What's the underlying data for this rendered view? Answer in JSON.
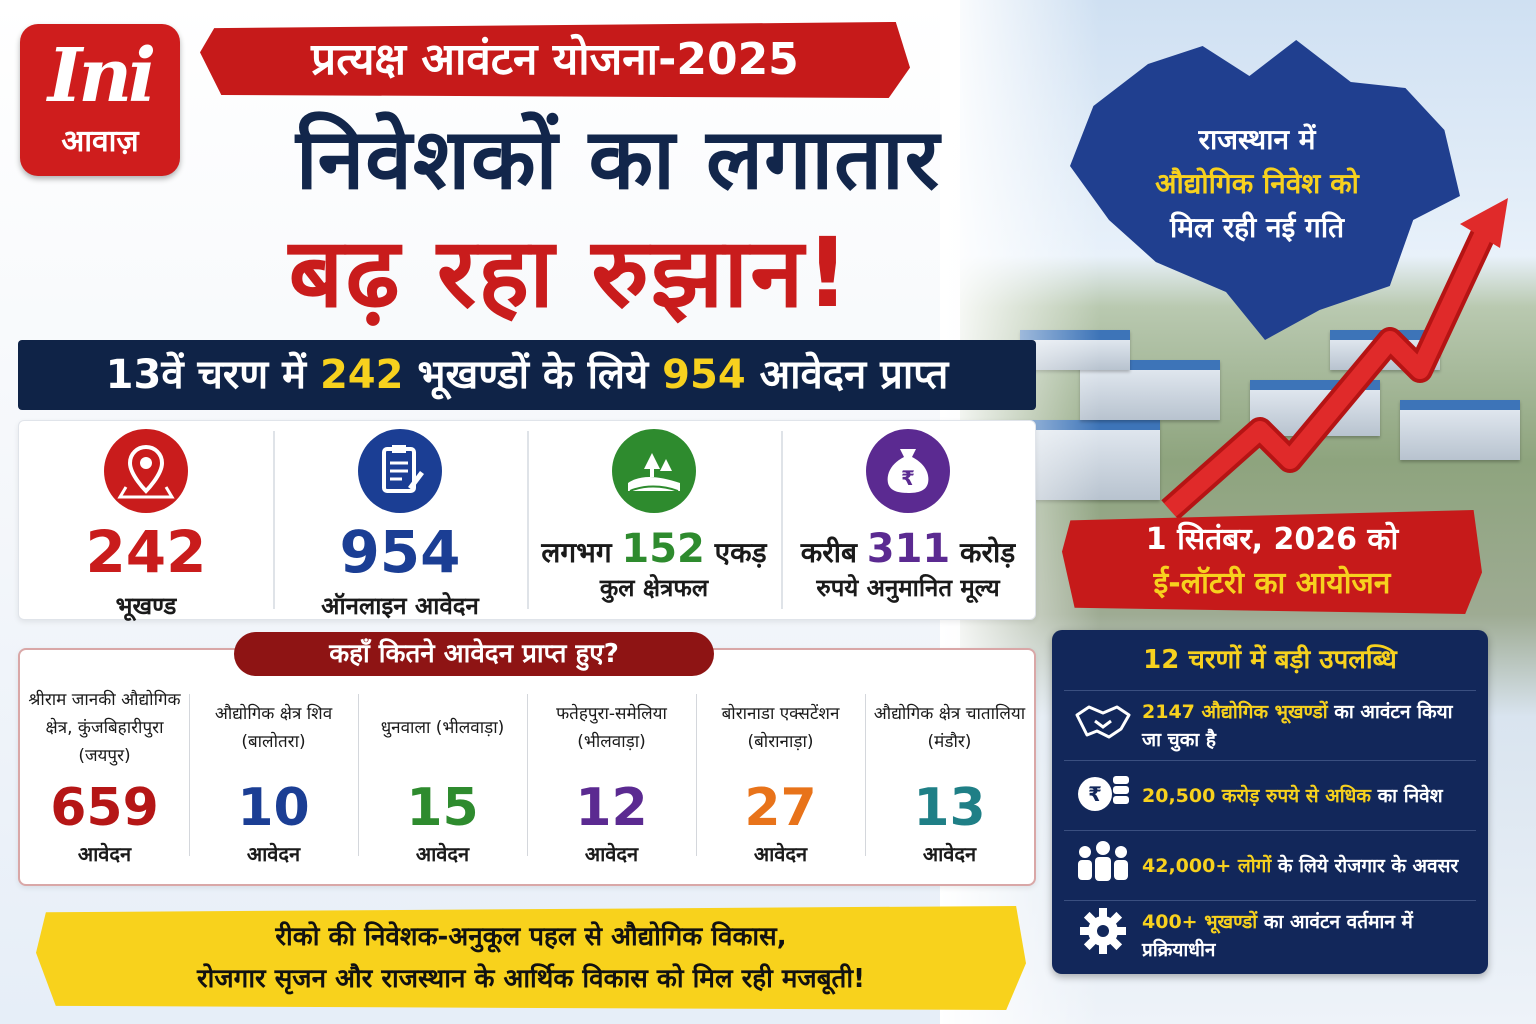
{
  "logo": {
    "mark": "Ini",
    "name": "आवाज़"
  },
  "header": {
    "banner": "प्रत्यक्ष आवंटन योजना-2025",
    "headline_line1": "निवेशकों का लगातार",
    "headline_line2": "बढ़ रहा रुझान!"
  },
  "phase": {
    "prefix": "13वें चरण में ",
    "plots": "242",
    "middle": " भूखण्डों के लिये ",
    "applications": "954",
    "suffix": " आवेदन प्राप्त"
  },
  "stats": [
    {
      "icon": "location-pin-icon",
      "value": "242",
      "label": "भूखण्ड",
      "color": "#c91c1c"
    },
    {
      "icon": "clipboard-icon",
      "value": "954",
      "label": "ऑनलाइन आवेदन",
      "color": "#1b3e94"
    },
    {
      "icon": "land-icon",
      "prefix": "लगभग ",
      "value": "152",
      "suffix": " एकड़",
      "label": "कुल क्षेत्रफल",
      "color": "#2e8b2e"
    },
    {
      "icon": "money-bag-icon",
      "prefix": "करीब ",
      "value": "311",
      "suffix": " करोड़",
      "label": "रुपये अनुमानित मूल्य",
      "color": "#5b2a91"
    }
  ],
  "applications": {
    "title": "कहाँ कितने आवेदन प्राप्त हुए?",
    "unit": "आवेदन",
    "items": [
      {
        "name": "श्रीराम जानकी औद्योगिक क्षेत्र, कुंजबिहारीपुरा (जयपुर)",
        "count": "659",
        "color": "#b51616"
      },
      {
        "name": "औद्योगिक क्षेत्र शिव (बालोतरा)",
        "count": "10",
        "color": "#1b3e94"
      },
      {
        "name": "धुनवाला (भीलवाड़ा)",
        "count": "15",
        "color": "#2e8b2e"
      },
      {
        "name": "फतेहपुरा-समेलिया (भीलवाड़ा)",
        "count": "12",
        "color": "#5b2a91"
      },
      {
        "name": "बोरानाडा एक्सटेंशन (बोरानाड़ा)",
        "count": "27",
        "color": "#e8731a"
      },
      {
        "name": "औद्योगिक क्षेत्र चातालिया (मंडौर)",
        "count": "13",
        "color": "#1f7f86"
      }
    ]
  },
  "footer": {
    "line1": "रीको की निवेशक-अनुकूल पहल से औद्योगिक विकास,",
    "line2": "रोजगार सृजन और राजस्थान के आर्थिक विकास को मिल रही मजबूती!"
  },
  "map": {
    "line1": "राजस्थान में",
    "line2": "औद्योगिक निवेश को",
    "line3": "मिल रही नई गति"
  },
  "lottery": {
    "line1": "1 सितंबर, 2026 को",
    "line2": "ई-लॉटरी का आयोजन"
  },
  "achievements": {
    "title": "12 चरणों में बड़ी उपलब्धि",
    "items": [
      {
        "icon": "handshake-icon",
        "highlight": "2147 औद्योगिक भूखण्डों",
        "rest": " का आवंटन किया जा चुका है"
      },
      {
        "icon": "coins-icon",
        "highlight": "20,500 करोड़ रुपये से अधिक",
        "rest": " का निवेश"
      },
      {
        "icon": "people-icon",
        "highlight": "42,000+ लोगों",
        "rest": " के लिये रोजगार के अवसर"
      },
      {
        "icon": "gear-icon",
        "highlight": "400+ भूखण्डों",
        "rest": " का आवंटन वर्तमान में प्रक्रियाधीन"
      }
    ]
  }
}
